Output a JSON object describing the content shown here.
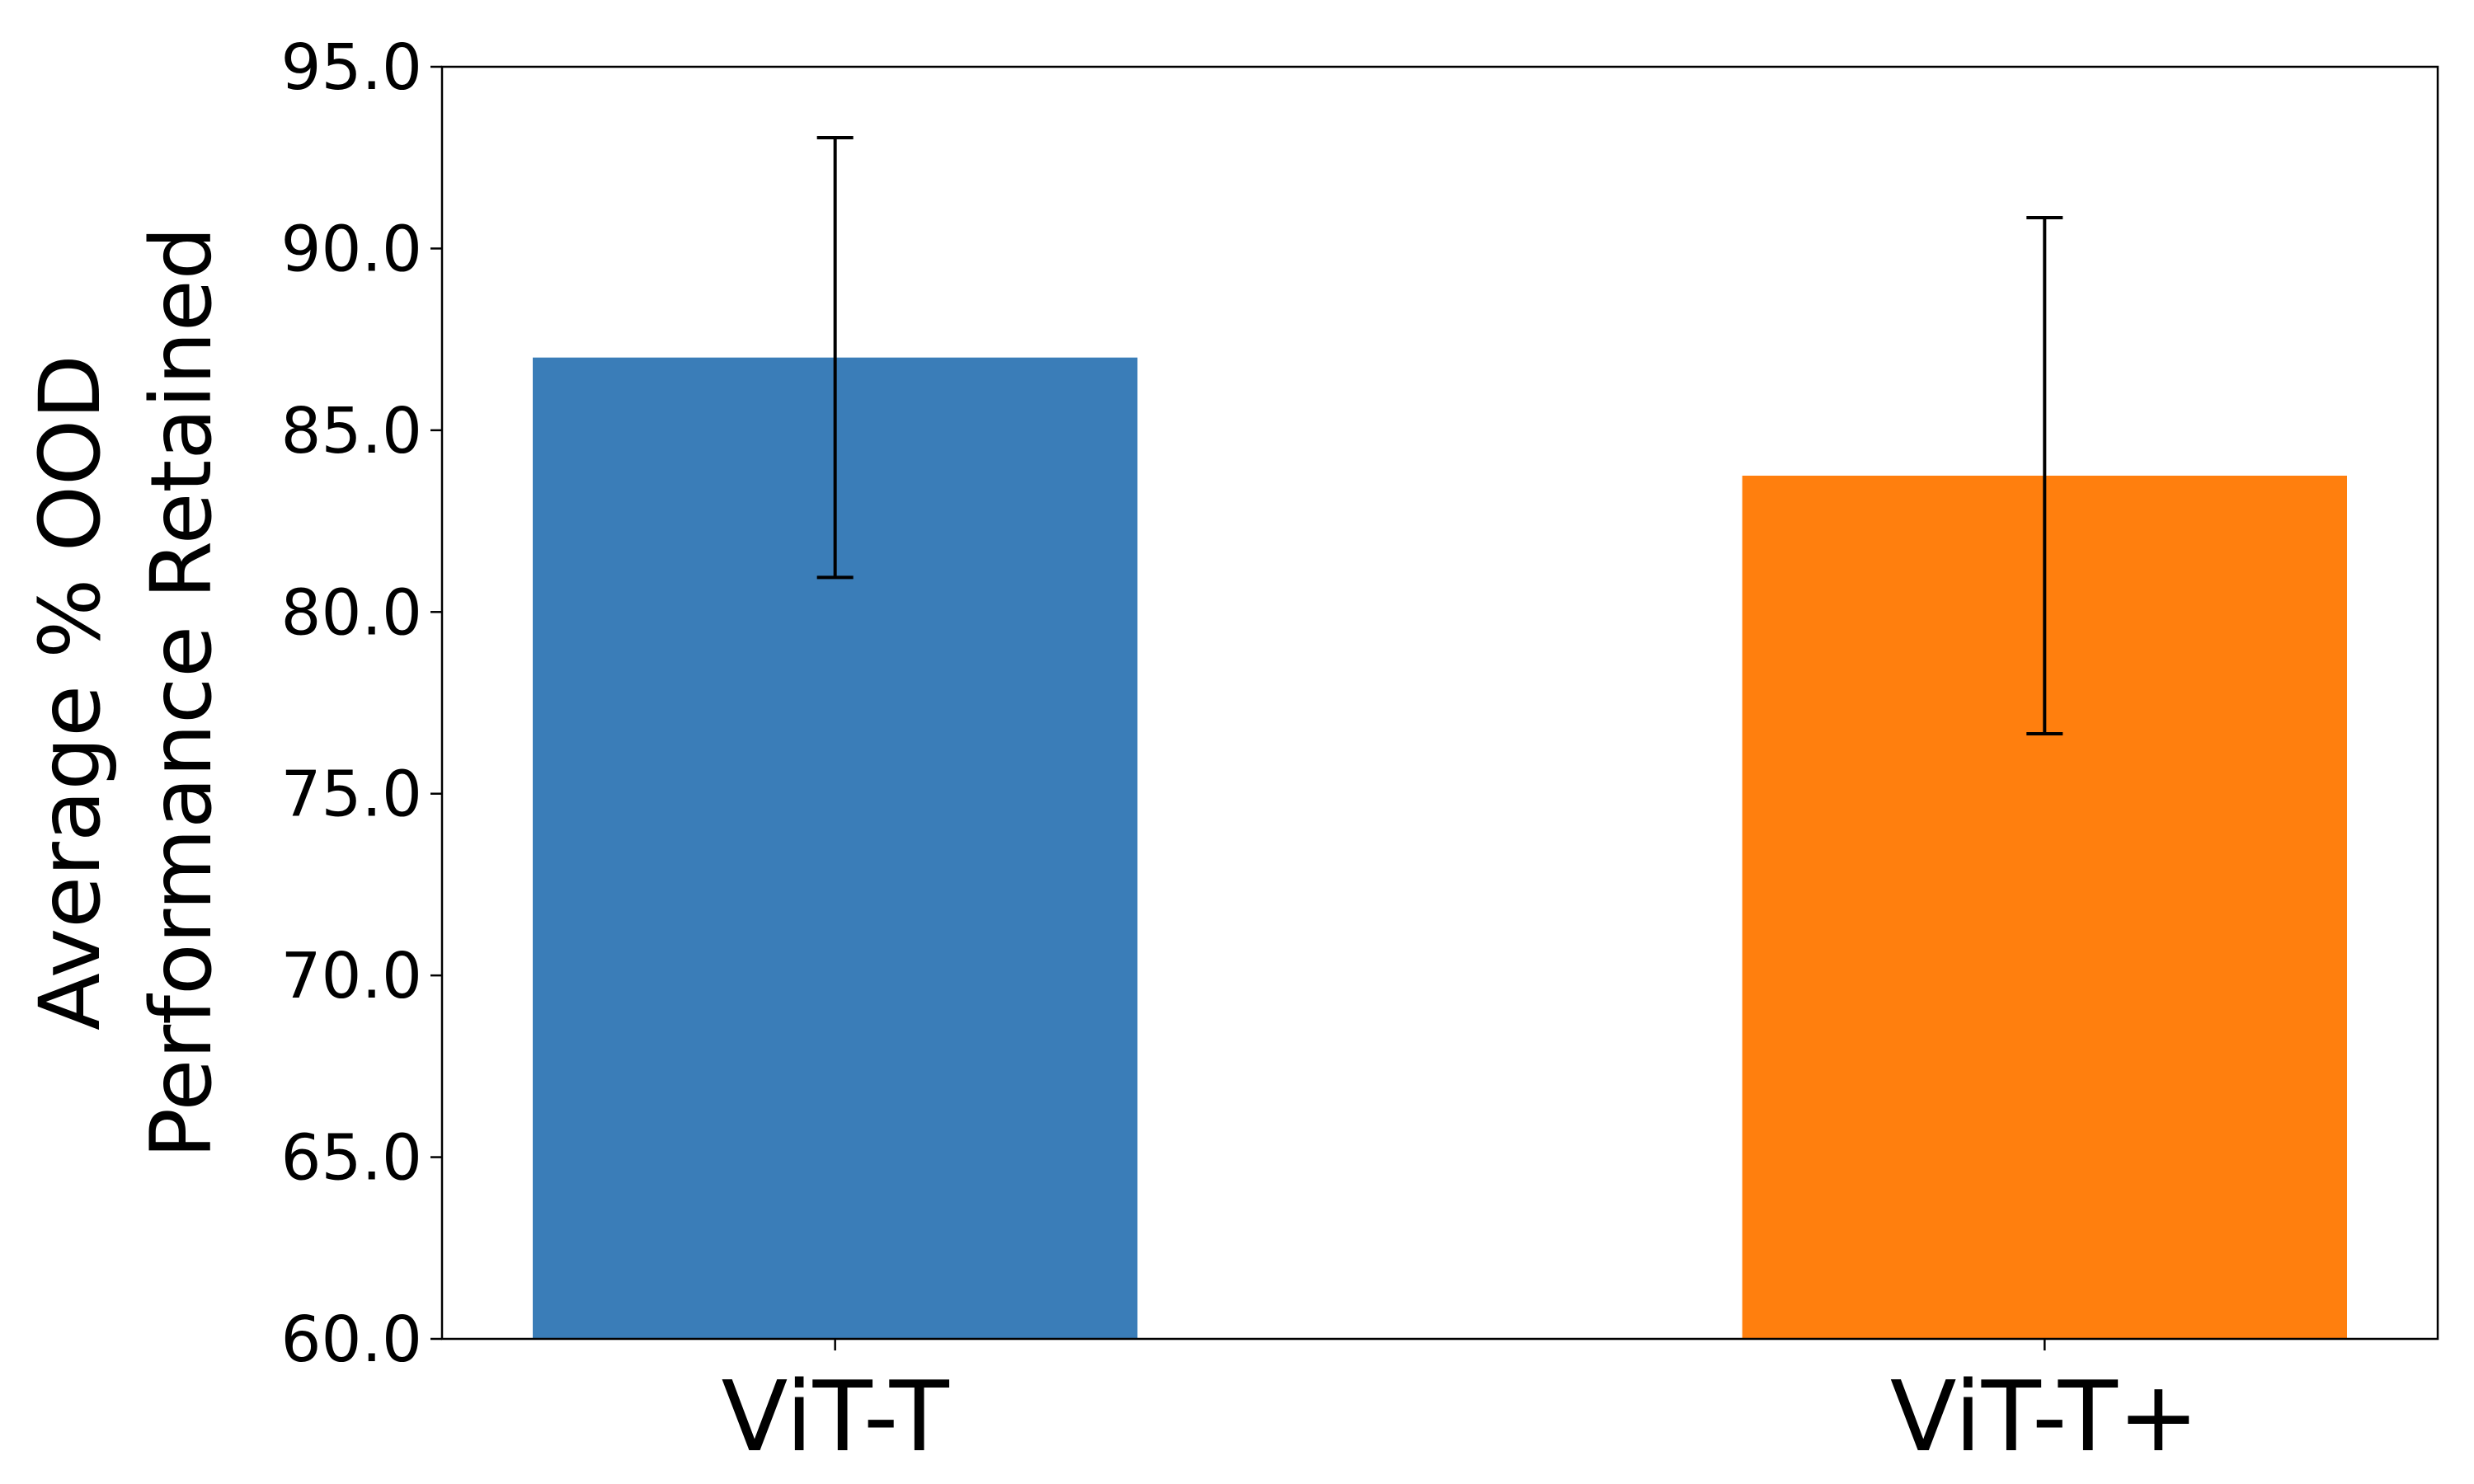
{
  "chart_data": {
    "type": "bar",
    "ylabel": [
      "Average % OOD",
      "Performance Retained"
    ],
    "categories": [
      "ViT-T",
      "ViT-T+"
    ],
    "values": [
      87.0,
      83.75
    ],
    "errors": [
      6.05,
      7.1
    ],
    "colors": [
      "#3a7db8",
      "#ff7f0e"
    ],
    "ylim": [
      60,
      95
    ],
    "yticks": [
      {
        "value": 60,
        "label": "60.0"
      },
      {
        "value": 65,
        "label": "65.0"
      },
      {
        "value": 70,
        "label": "70.0"
      },
      {
        "value": 75,
        "label": "75.0"
      },
      {
        "value": 80,
        "label": "80.0"
      },
      {
        "value": 85,
        "label": "85.0"
      },
      {
        "value": 90,
        "label": "90.0"
      },
      {
        "value": 95,
        "label": "95.0"
      }
    ],
    "grid": false
  }
}
